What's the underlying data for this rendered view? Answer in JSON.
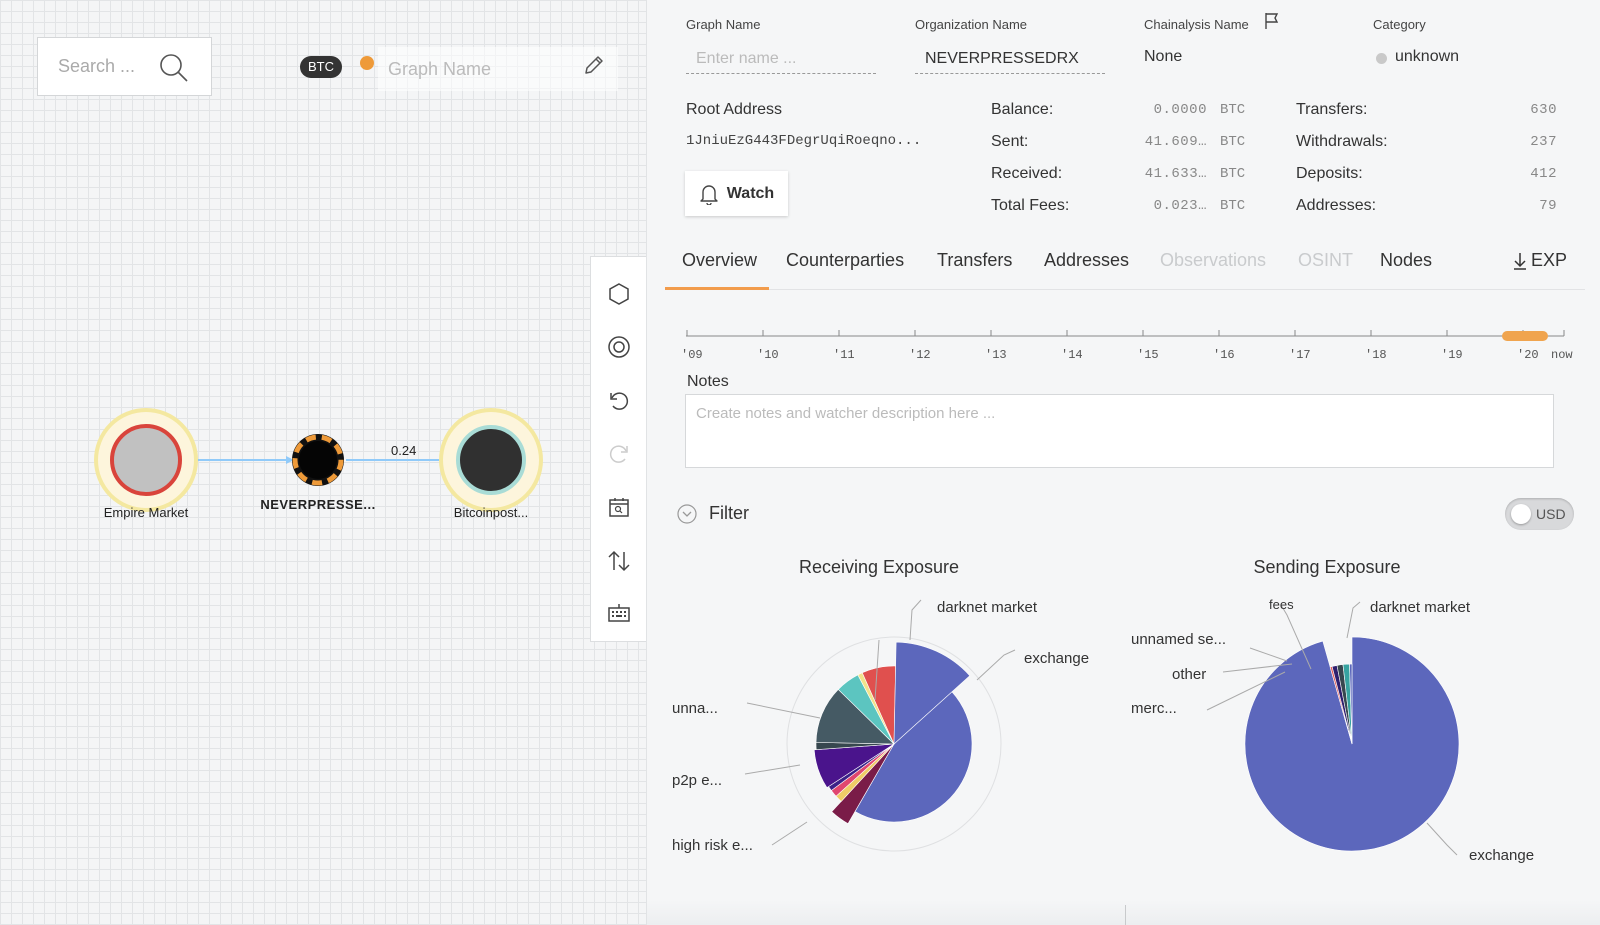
{
  "canvas": {
    "search_placeholder": "Search ...",
    "currency_badge": "BTC",
    "graph_name_placeholder": "Graph Name",
    "nodes": [
      {
        "label": "Empire Market",
        "bold": false
      },
      {
        "label": "NEVERPRESSE...",
        "bold": true
      },
      {
        "label": "Bitcoinpost...",
        "bold": false
      }
    ],
    "edge_label": "0.24"
  },
  "header": {
    "graph_name_label": "Graph Name",
    "graph_name_placeholder": "Enter name ...",
    "org_name_label": "Organization Name",
    "org_name_value": "NEVERPRESSEDRX",
    "chainalysis_label": "Chainalysis Name",
    "chainalysis_value": "None",
    "category_label": "Category",
    "category_value": "unknown"
  },
  "summary": {
    "root_label": "Root Address",
    "root_value": "1JniuEzG443FDegrUqiRoeqno...",
    "watch_label": "Watch",
    "balance": {
      "label": "Balance:",
      "value": "0.0000",
      "unit": "BTC"
    },
    "sent": {
      "label": "Sent:",
      "value": "41.609…",
      "unit": "BTC"
    },
    "received": {
      "label": "Received:",
      "value": "41.633…",
      "unit": "BTC"
    },
    "fees": {
      "label": "Total Fees:",
      "value": "0.023…",
      "unit": "BTC"
    },
    "transfers": {
      "label": "Transfers:",
      "value": "630"
    },
    "withdrawals": {
      "label": "Withdrawals:",
      "value": "237"
    },
    "deposits": {
      "label": "Deposits:",
      "value": "412"
    },
    "addresses": {
      "label": "Addresses:",
      "value": "79"
    }
  },
  "tabs": [
    {
      "label": "Overview",
      "active": true
    },
    {
      "label": "Counterparties"
    },
    {
      "label": "Transfers"
    },
    {
      "label": "Addresses"
    },
    {
      "label": "Observations",
      "disabled": true
    },
    {
      "label": "OSINT",
      "disabled": true
    },
    {
      "label": "Nodes"
    }
  ],
  "export_label": "EXP",
  "timeline": {
    "ticks": [
      "'09",
      "'10",
      "'11",
      "'12",
      "'13",
      "'14",
      "'15",
      "'16",
      "'17",
      "'18",
      "'19",
      "'20",
      "now"
    ]
  },
  "notes": {
    "label": "Notes",
    "placeholder": "Create notes and watcher description here ..."
  },
  "filter_label": "Filter",
  "usd_label": "USD",
  "chart_data": [
    {
      "type": "pie",
      "title": "Receiving Exposure",
      "labels_shown": [
        "darknet market",
        "exchange",
        "unna...",
        "p2p e...",
        "high risk e..."
      ],
      "slices": [
        {
          "color": "#5c67bc",
          "value": 45.0
        },
        {
          "color": "#7a1c48",
          "value": 3.5
        },
        {
          "color": "#f0cc66",
          "value": 1.5
        },
        {
          "color": "#e0466f",
          "value": 1.5
        },
        {
          "color": "#3a2188",
          "value": 1.0
        },
        {
          "color": "#4a148c",
          "value": 8.0
        },
        {
          "color": "#37474f",
          "value": 1.5
        },
        {
          "color": "#455a64",
          "value": 12.0
        },
        {
          "color": "#5cc5c0",
          "value": 5.0
        },
        {
          "color": "#f2e38c",
          "value": 1.0
        },
        {
          "color": "#e0504e",
          "value": 7.0
        },
        {
          "color": "#5c67bc",
          "value": 13.0
        }
      ]
    },
    {
      "type": "pie",
      "title": "Sending Exposure",
      "labels_shown": [
        "fees",
        "darknet market",
        "unnamed se...",
        "other",
        "merc...",
        "exchange"
      ],
      "slices": [
        {
          "color": "#5c67bc",
          "value": 95.6
        },
        {
          "color": "#e05a5a",
          "value": 0.4
        },
        {
          "color": "#2e1f6e",
          "value": 1.0
        },
        {
          "color": "#37474f",
          "value": 1.2
        },
        {
          "color": "#37a3a0",
          "value": 1.3
        },
        {
          "color": "#5c67bc",
          "value": 0.5
        }
      ]
    }
  ]
}
